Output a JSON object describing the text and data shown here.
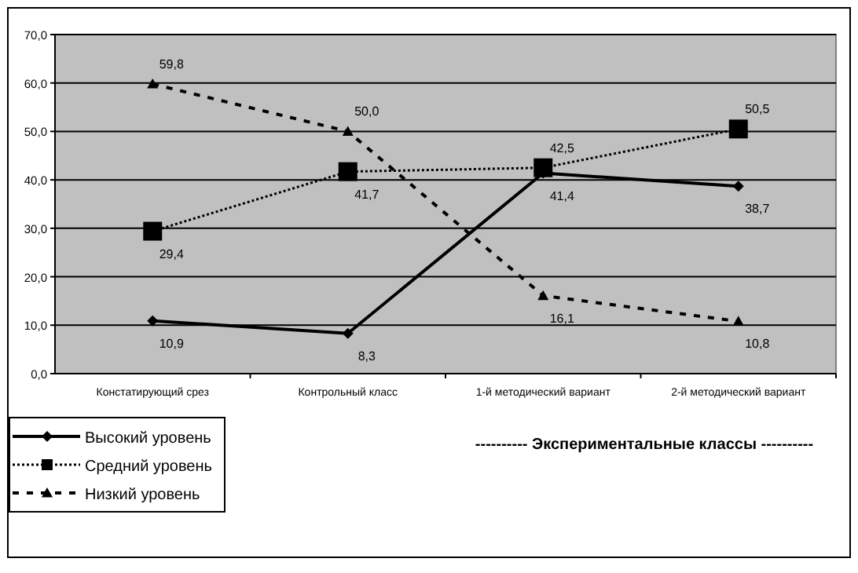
{
  "chart_data": {
    "type": "line",
    "categories": [
      "Констатирующий срез",
      "Контрольный класс",
      "1-й методический вариант",
      "2-й методический вариант"
    ],
    "series": [
      {
        "name": "Высокий уровень",
        "color": "#000000",
        "values": [
          10.9,
          8.3,
          41.4,
          38.7
        ],
        "value_labels": [
          "10,9",
          "8,3",
          "41,4",
          "38,7"
        ],
        "marker": "diamond",
        "line_style": "solid"
      },
      {
        "name": "Средний уровень",
        "color": "#000000",
        "values": [
          29.4,
          41.7,
          42.5,
          50.5
        ],
        "value_labels": [
          "29,4",
          "41,7",
          "42,5",
          "50,5"
        ],
        "marker": "square",
        "line_style": "dotted"
      },
      {
        "name": "Низкий уровень",
        "color": "#000000",
        "values": [
          59.8,
          50.0,
          16.1,
          10.8
        ],
        "value_labels": [
          "59,8",
          "50,0",
          "16,1",
          "10,8"
        ],
        "marker": "triangle",
        "line_style": "dashed"
      }
    ],
    "ylim": [
      0,
      70
    ],
    "yticks": [
      {
        "value": 0,
        "label": "0,0"
      },
      {
        "value": 10,
        "label": "10,0"
      },
      {
        "value": 20,
        "label": "20,0"
      },
      {
        "value": 30,
        "label": "30,0"
      },
      {
        "value": 40,
        "label": "40,0"
      },
      {
        "value": 50,
        "label": "50,0"
      },
      {
        "value": 60,
        "label": "60,0"
      },
      {
        "value": 70,
        "label": "70,0"
      }
    ],
    "grid": "y",
    "legend": "bottom left",
    "annotations": [
      "---------- Экспериментальные классы ----------"
    ]
  }
}
